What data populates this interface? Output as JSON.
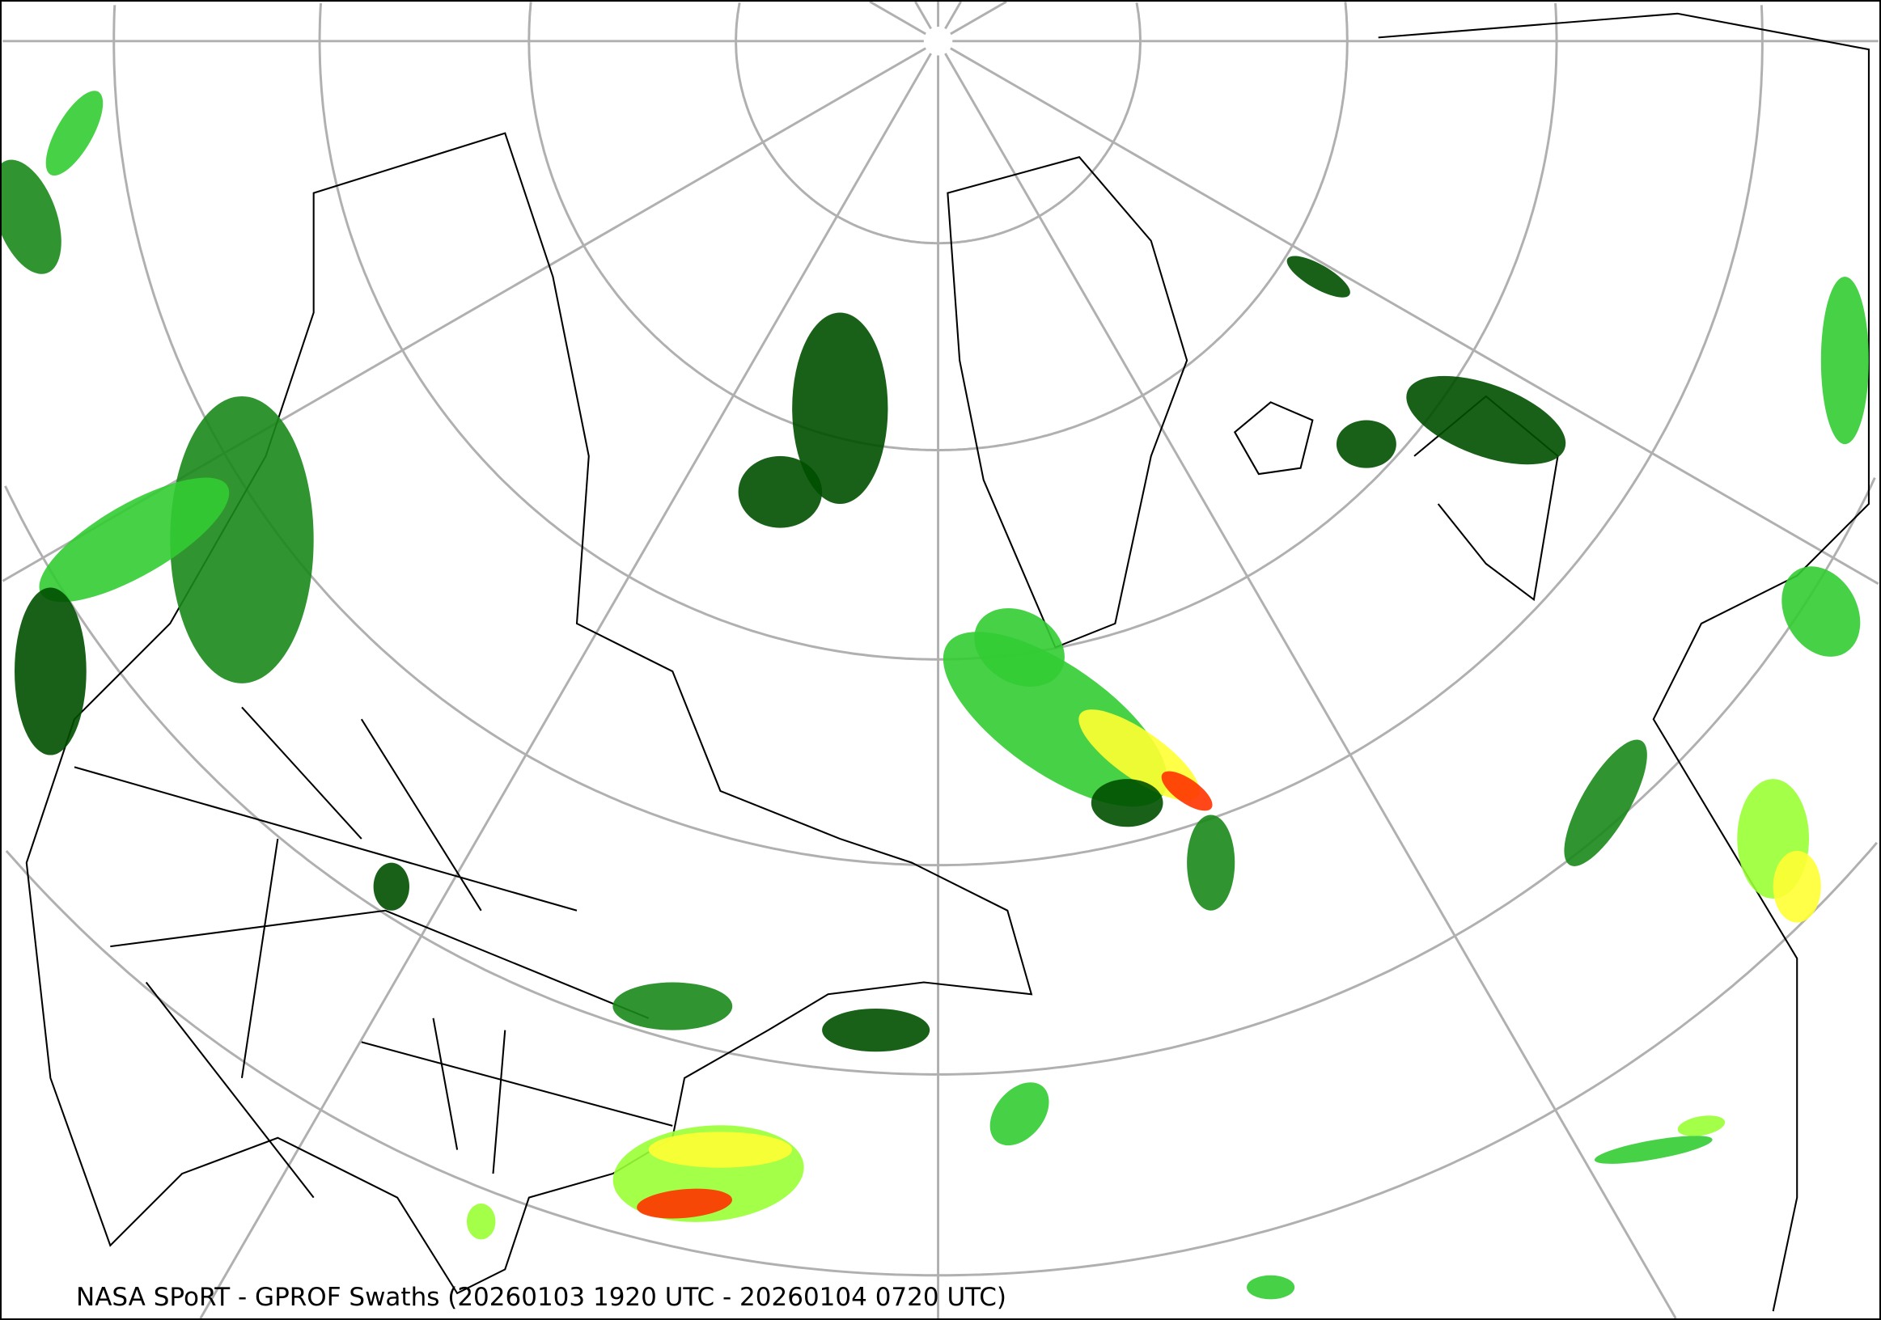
{
  "title": "NASA SPoRT - GPROF Swaths (20260103 1920 UTC - 20260104 0720 UTC)",
  "map": {
    "projection": "north-polar-stereographic",
    "graticule_color": "#b0b0b0",
    "boundary_color": "#000000",
    "precip_colors": [
      "#005000",
      "#1a8a1a",
      "#33cc33",
      "#99ff33",
      "#ffff33",
      "#ff9900",
      "#ff3300"
    ]
  }
}
